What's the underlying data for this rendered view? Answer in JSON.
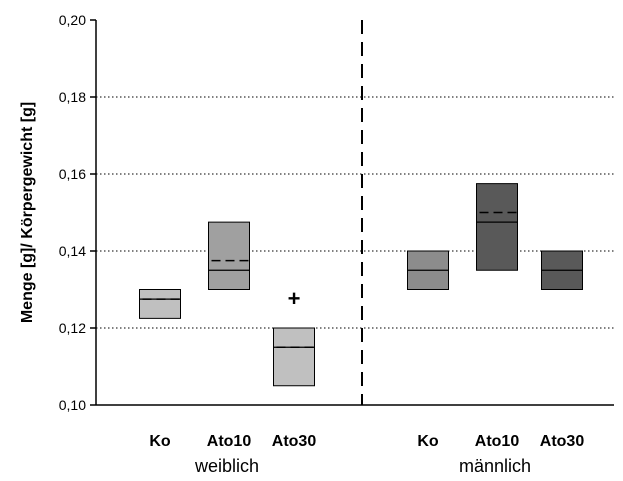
{
  "chart_data": {
    "type": "box",
    "ylabel": "Menge [g]/ Körpergewicht [g]",
    "ylim": [
      0.1,
      0.2
    ],
    "yticks": [
      "0,10",
      "0,12",
      "0,14",
      "0,16",
      "0,18",
      "0,20"
    ],
    "ytick_values": [
      0.1,
      0.12,
      0.14,
      0.16,
      0.18,
      0.2
    ],
    "grid": "horizontal-dotted",
    "groups": [
      {
        "label": "weiblich",
        "categories": [
          "Ko",
          "Ato10",
          "Ato30"
        ]
      },
      {
        "label": "männlich",
        "categories": [
          "Ko",
          "Ato10",
          "Ato30"
        ]
      }
    ],
    "boxes": [
      {
        "group": "weiblich",
        "category": "Ko",
        "q1": 0.1225,
        "q3": 0.13,
        "median": 0.1275,
        "mean": 0.1275,
        "color": "#c0c0c0"
      },
      {
        "group": "weiblich",
        "category": "Ato10",
        "q1": 0.13,
        "q3": 0.1475,
        "median": 0.135,
        "mean": 0.1375,
        "color": "#a0a0a0"
      },
      {
        "group": "weiblich",
        "category": "Ato30",
        "q1": 0.105,
        "q3": 0.12,
        "median": 0.115,
        "mean": 0.115,
        "color": "#c0c0c0",
        "annotation": "+",
        "annotation_y": 0.1275
      },
      {
        "group": "männlich",
        "category": "Ko",
        "q1": 0.13,
        "q3": 0.14,
        "median": 0.135,
        "mean": null,
        "color": "#8c8c8c"
      },
      {
        "group": "männlich",
        "category": "Ato10",
        "q1": 0.135,
        "q3": 0.1575,
        "median": 0.1475,
        "mean": 0.15,
        "color": "#595959"
      },
      {
        "group": "männlich",
        "category": "Ato30",
        "q1": 0.13,
        "q3": 0.14,
        "median": 0.135,
        "mean": null,
        "color": "#595959"
      }
    ]
  }
}
